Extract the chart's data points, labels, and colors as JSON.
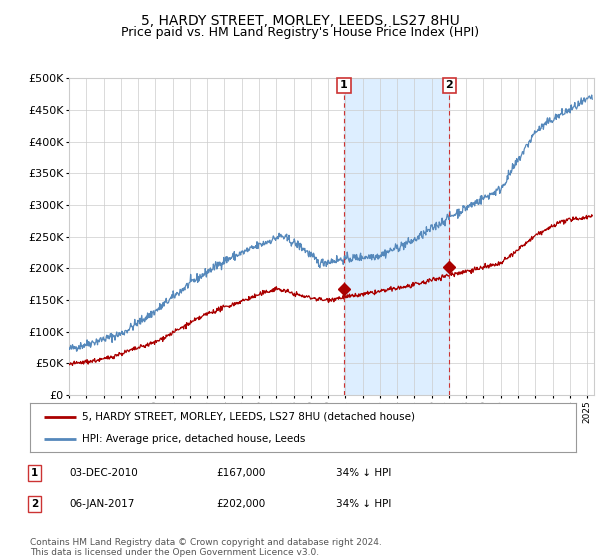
{
  "title": "5, HARDY STREET, MORLEY, LEEDS, LS27 8HU",
  "subtitle": "Price paid vs. HM Land Registry's House Price Index (HPI)",
  "ytick_values": [
    0,
    50000,
    100000,
    150000,
    200000,
    250000,
    300000,
    350000,
    400000,
    450000,
    500000
  ],
  "ylim": [
    0,
    500000
  ],
  "xlim_start": 1995.0,
  "xlim_end": 2025.4,
  "sale1_date": 2010.92,
  "sale1_price": 167000,
  "sale1_label": "1",
  "sale2_date": 2017.03,
  "sale2_price": 202000,
  "sale2_label": "2",
  "legend_line1": "5, HARDY STREET, MORLEY, LEEDS, LS27 8HU (detached house)",
  "legend_line2": "HPI: Average price, detached house, Leeds",
  "table_row1": [
    "1",
    "03-DEC-2010",
    "£167,000",
    "34% ↓ HPI"
  ],
  "table_row2": [
    "2",
    "06-JAN-2017",
    "£202,000",
    "34% ↓ HPI"
  ],
  "copyright": "Contains HM Land Registry data © Crown copyright and database right 2024.\nThis data is licensed under the Open Government Licence v3.0.",
  "line_red_color": "#aa0000",
  "line_blue_color": "#5588bb",
  "shade_color": "#ddeeff",
  "vline_color": "#cc3333",
  "background_color": "#ffffff",
  "grid_color": "#cccccc",
  "title_fontsize": 10,
  "subtitle_fontsize": 9
}
